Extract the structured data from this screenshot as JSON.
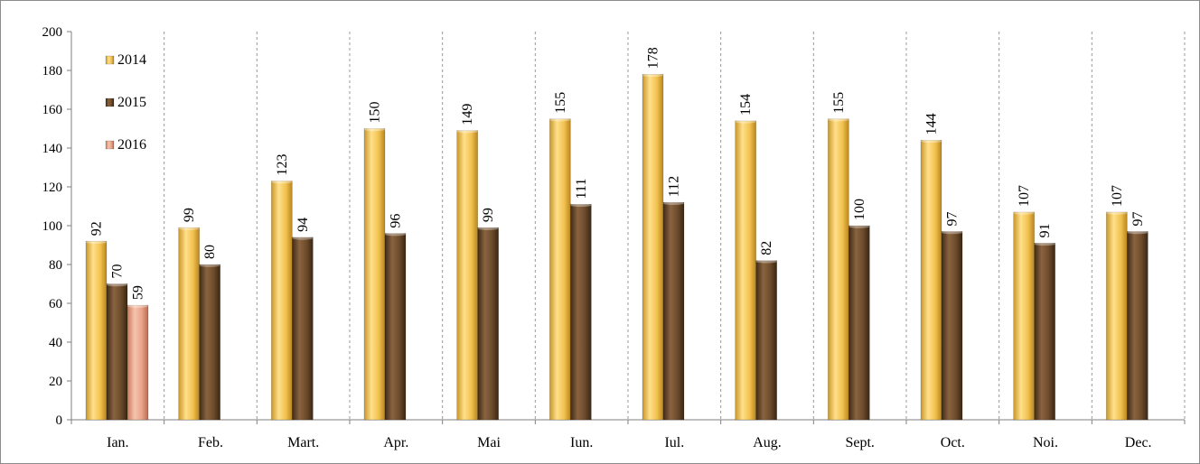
{
  "chart_data": {
    "type": "bar",
    "title": "",
    "xlabel": "",
    "ylabel": "",
    "ylim": [
      0,
      200
    ],
    "ytick_step": 20,
    "grid": "vertical-dashed-between-categories",
    "legend_position": "top-left",
    "categories": [
      "Ian.",
      "Feb.",
      "Mart.",
      "Apr.",
      "Mai",
      "Iun.",
      "Iul.",
      "Aug.",
      "Sept.",
      "Oct.",
      "Noi.",
      "Dec."
    ],
    "series": [
      {
        "name": "2014",
        "color": "#f2c14e",
        "values": [
          92,
          99,
          123,
          150,
          149,
          155,
          178,
          154,
          155,
          144,
          107,
          107
        ]
      },
      {
        "name": "2015",
        "color": "#6b4a2b",
        "values": [
          70,
          80,
          94,
          96,
          99,
          111,
          112,
          82,
          100,
          97,
          91,
          97
        ]
      },
      {
        "name": "2016",
        "color": "#e8a288",
        "values": [
          59,
          null,
          null,
          null,
          null,
          null,
          null,
          null,
          null,
          null,
          null,
          null
        ]
      }
    ]
  }
}
